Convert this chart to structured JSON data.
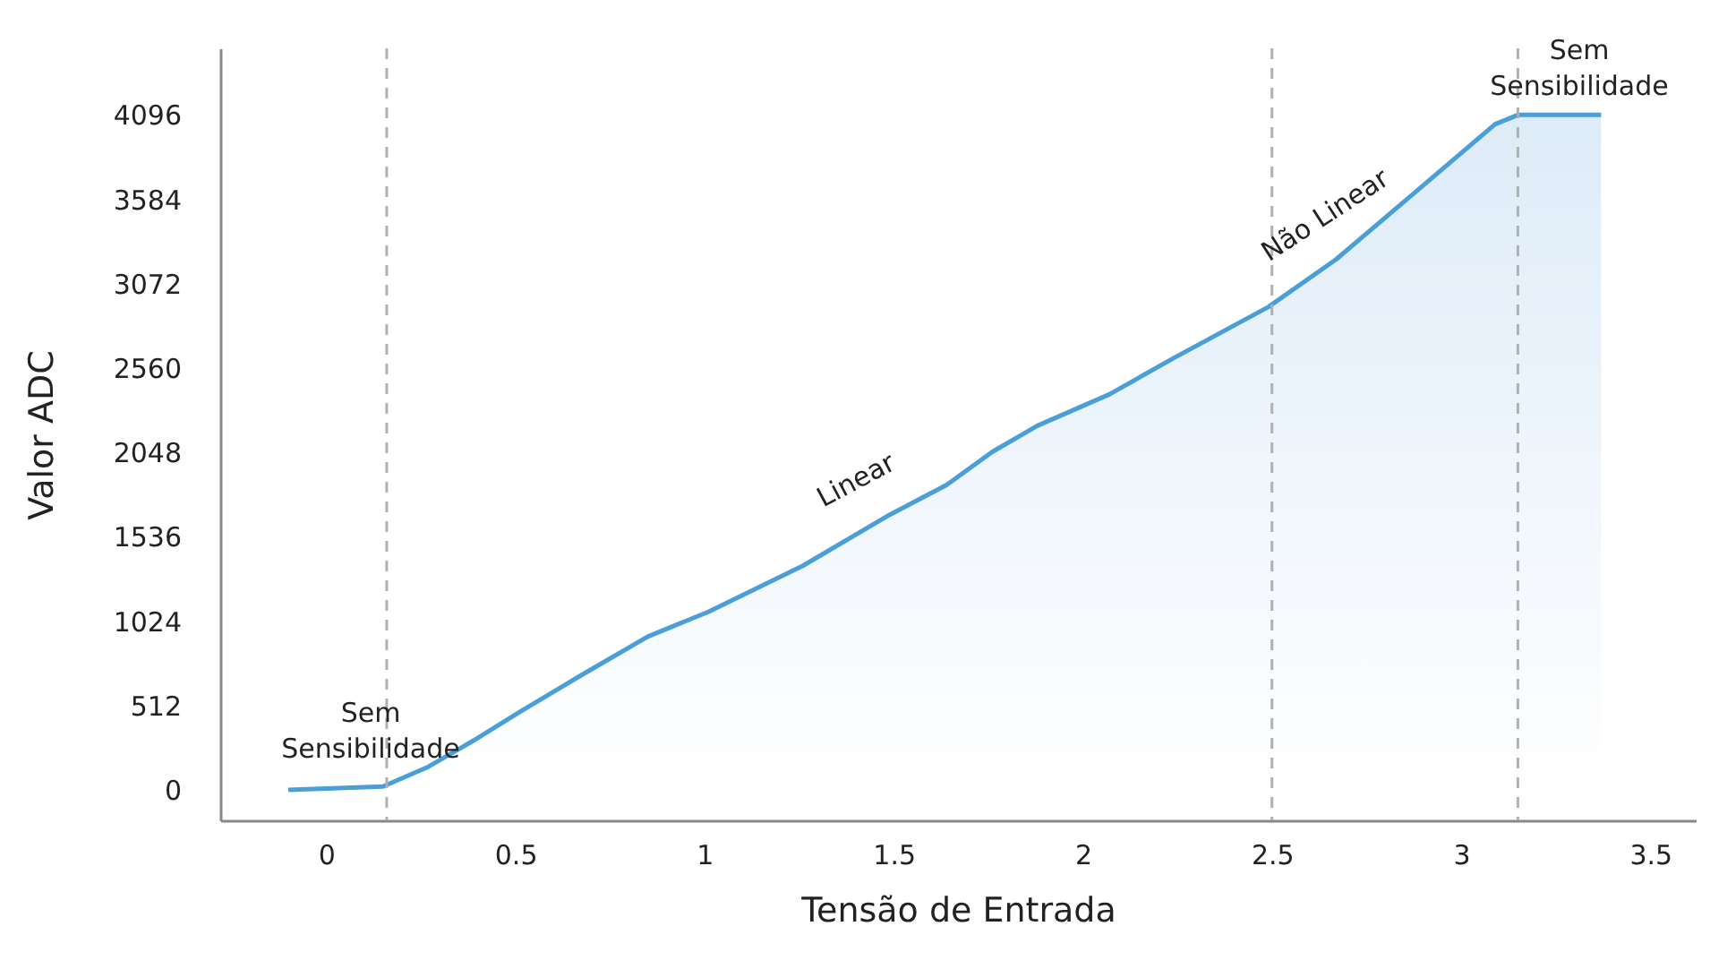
{
  "chart_data": {
    "type": "area",
    "xlabel": "Tensão de Entrada",
    "ylabel": "Valor ADC",
    "xlim": [
      -0.28,
      3.62
    ],
    "ylim": [
      -185,
      4500
    ],
    "xticks": [
      0,
      0.5,
      1,
      1.5,
      2,
      2.5,
      3,
      3.5
    ],
    "yticks": [
      0,
      512,
      1024,
      1536,
      2048,
      2560,
      3072,
      3584,
      4096
    ],
    "grid": false,
    "marker": "none",
    "line_style": "solid",
    "series": [
      {
        "color": "#4a9fd8",
        "x": [
          -0.1,
          0.15,
          0.27,
          0.39,
          0.51,
          0.67,
          0.85,
          1.01,
          1.26,
          1.49,
          1.64,
          1.76,
          1.88,
          2.07,
          2.24,
          2.49,
          2.67,
          2.88,
          3.09,
          3.15,
          3.37
        ],
        "values": [
          0,
          20,
          140,
          300,
          470,
          690,
          930,
          1080,
          1360,
          1670,
          1850,
          2050,
          2210,
          2400,
          2620,
          2930,
          3220,
          3630,
          4040,
          4096,
          4096
        ]
      }
    ],
    "ref_lines": [
      {
        "axis": "x",
        "value": 0.16,
        "color": "#b0b0b0",
        "line_style": "dashed"
      },
      {
        "axis": "x",
        "value": 2.5,
        "color": "#b0b0b0",
        "line_style": "dashed"
      },
      {
        "axis": "x",
        "value": 3.15,
        "color": "#b0b0b0",
        "line_style": "dashed"
      }
    ],
    "annotations": [
      "Sem Sensibilidade",
      "Linear",
      "Não Linear",
      "Sem Sensibilidade"
    ]
  }
}
